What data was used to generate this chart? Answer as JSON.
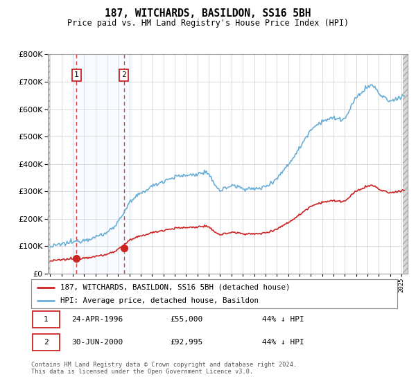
{
  "title": "187, WITCHARDS, BASILDON, SS16 5BH",
  "subtitle": "Price paid vs. HM Land Registry's House Price Index (HPI)",
  "ylim": [
    0,
    800000
  ],
  "yticks": [
    0,
    100000,
    200000,
    300000,
    400000,
    500000,
    600000,
    700000,
    800000
  ],
  "hpi_color": "#6baed6",
  "price_color": "#cc2222",
  "sale1_date": 1996.31,
  "sale1_price": 55000,
  "sale2_date": 2000.5,
  "sale2_price": 92995,
  "legend_line1": "187, WITCHARDS, BASILDON, SS16 5BH (detached house)",
  "legend_line2": "HPI: Average price, detached house, Basildon",
  "table_row1": [
    "1",
    "24-APR-1996",
    "£55,000",
    "44% ↓ HPI"
  ],
  "table_row2": [
    "2",
    "30-JUN-2000",
    "£92,995",
    "44% ↓ HPI"
  ],
  "footnote": "Contains HM Land Registry data © Crown copyright and database right 2024.\nThis data is licensed under the Open Government Licence v3.0.",
  "grid_color": "#cccccc",
  "shade_color": "#ddeeff",
  "hatch_facecolor": "#d8d8d8"
}
